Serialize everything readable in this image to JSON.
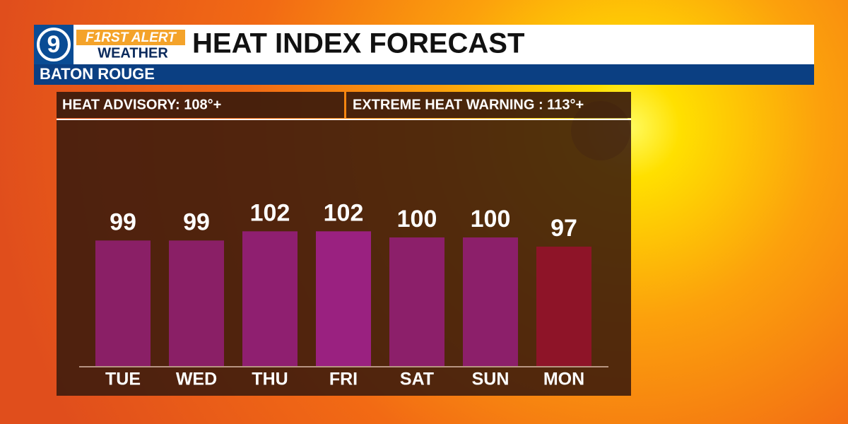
{
  "header": {
    "logo": "9",
    "brand": "F1RST ALERT",
    "brand_sub": "WEATHER"
  },
  "alerts": [
    "HEAT ADVISORY: 108°+",
    "EXTREME HEAT WARNING : 113°+"
  ],
  "chart_data": {
    "type": "bar",
    "title": "HEAT INDEX FORECAST",
    "subtitle": "BATON ROUGE",
    "categories": [
      "TUE",
      "WED",
      "THU",
      "FRI",
      "SAT",
      "SUN",
      "MON"
    ],
    "values": [
      99,
      99,
      102,
      102,
      100,
      100,
      97
    ],
    "colors": [
      "#8a1f66",
      "#8a1f66",
      "#8f1f70",
      "#9a2180",
      "#8c1f6a",
      "#8c1f6a",
      "#8e1428"
    ],
    "ylim": [
      58,
      118
    ]
  }
}
